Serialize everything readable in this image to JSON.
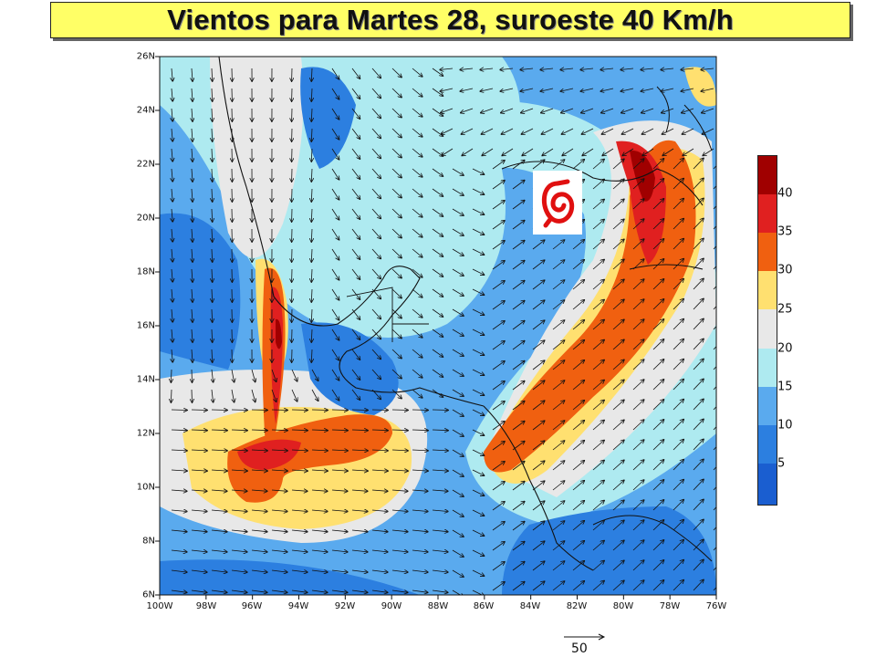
{
  "title": "Vientos para Martes 28, suroeste 40 Km/h",
  "latitudes": [
    "26N",
    "24N",
    "22N",
    "20N",
    "18N",
    "16N",
    "14N",
    "12N",
    "10N",
    "8N",
    "6N"
  ],
  "longitudes": [
    "100W",
    "98W",
    "96W",
    "94W",
    "92W",
    "90W",
    "88W",
    "86W",
    "84W",
    "82W",
    "80W",
    "78W",
    "76W"
  ],
  "colorbar": {
    "labels": [
      "40",
      "35",
      "30",
      "25",
      "20",
      "15",
      "10",
      "5"
    ],
    "colors": [
      "#a00000",
      "#e02020",
      "#f06010",
      "#ffe070",
      "#e8e8e8",
      "#aeeaf0",
      "#5aaaee",
      "#2c7fe0",
      "#1a5ed0"
    ]
  },
  "reference_vector": {
    "label": "50"
  },
  "storm_icon": "hurricane-symbol-icon"
}
